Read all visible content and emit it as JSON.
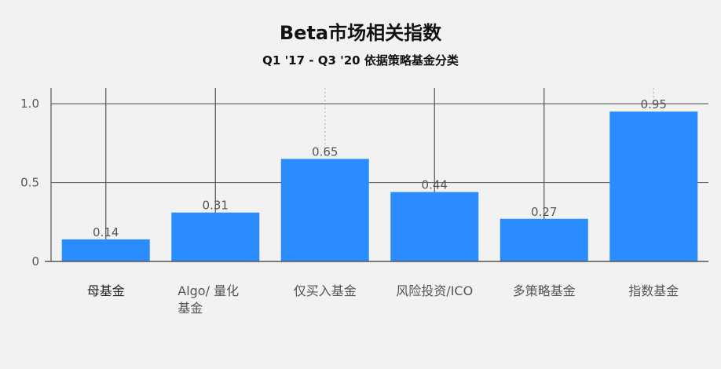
{
  "chart_data": {
    "type": "bar",
    "title": "Beta市场相关指数",
    "subtitle": "Q1 '17 - Q3 '20 依据策略基金分类",
    "categories": [
      [
        "母基金"
      ],
      [
        "Algo/ 量化",
        "基金"
      ],
      [
        "仅买入基金"
      ],
      [
        "风险投资/ICO"
      ],
      [
        "多策略基金"
      ],
      [
        "指数基金"
      ]
    ],
    "values": [
      0.14,
      0.31,
      0.65,
      0.44,
      0.27,
      0.95
    ],
    "data_labels": [
      "0.14",
      "0.31",
      "0.65",
      "0.44",
      "0.27",
      "0.95"
    ],
    "y_ticks": [
      {
        "value": 0,
        "label": "0"
      },
      {
        "value": 0.5,
        "label": "0.5"
      },
      {
        "value": 1.0,
        "label": "1.0"
      }
    ],
    "ylim": [
      0,
      1.1
    ],
    "xlabel": "",
    "ylabel": "",
    "grid": true,
    "bar_color": "#2b8cff",
    "background_color": "#f2f2f2"
  }
}
